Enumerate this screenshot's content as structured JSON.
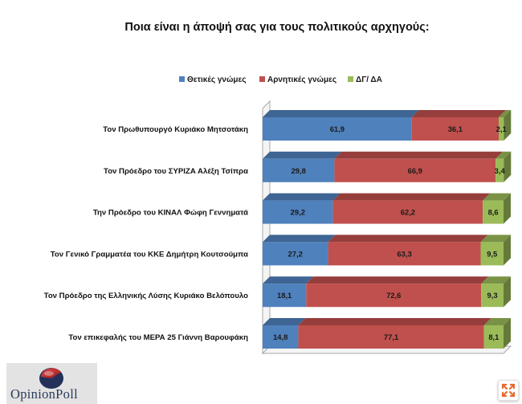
{
  "chart_data": {
    "type": "bar",
    "orientation": "horizontal",
    "stacked": "100%",
    "title": "Ποια είναι η άποψή σας για τους πολιτικούς αρχηγούς:",
    "categories": [
      "Τον Πρωθυπουργό Κυριάκο Μητσοτάκη",
      "Τον Πρόεδρο του ΣΥΡΙΖΑ Αλέξη Τσίπρα",
      "Την Πρόεδρο του ΚΙΝΑΛ Φώφη Γεννηματά",
      "Τον Γενικό Γραμματέα του ΚΚΕ Δημήτρη Κουτσούμπα",
      "Τον Πρόεδρο της Ελληνικής Λύσης Κυριάκο Βελόπουλο",
      "Τον επικεφαλής του ΜΕΡΑ 25 Γιάννη Βαρουφάκη"
    ],
    "series": [
      {
        "name": "Θετικές γνώμες",
        "color": "#4f81bd",
        "values": [
          61.9,
          29.8,
          29.2,
          27.2,
          18.1,
          14.8
        ]
      },
      {
        "name": "Αρνητικές γνώμες",
        "color": "#c0504d",
        "values": [
          36.1,
          66.9,
          62.2,
          63.3,
          72.6,
          77.1
        ]
      },
      {
        "name": "ΔΓ/ ΔΑ",
        "color": "#9bbb59",
        "values": [
          2.1,
          3.4,
          8.6,
          9.5,
          9.3,
          8.1
        ]
      }
    ],
    "value_labels": [
      [
        "61,9",
        "29,8",
        "29,2",
        "27,2",
        "18,1",
        "14,8"
      ],
      [
        "36,1",
        "66,9",
        "62,2",
        "63,3",
        "72,6",
        "77,1"
      ],
      [
        "2,1",
        "3,4",
        "8,6",
        "9,5",
        "9,3",
        "8,1"
      ]
    ],
    "xlim": [
      0,
      100
    ],
    "grid": false,
    "legend_position": "top",
    "style": "3d"
  },
  "logo": {
    "text": "OpinionPoll"
  },
  "zoom_icon": "expand-arrows-icon"
}
